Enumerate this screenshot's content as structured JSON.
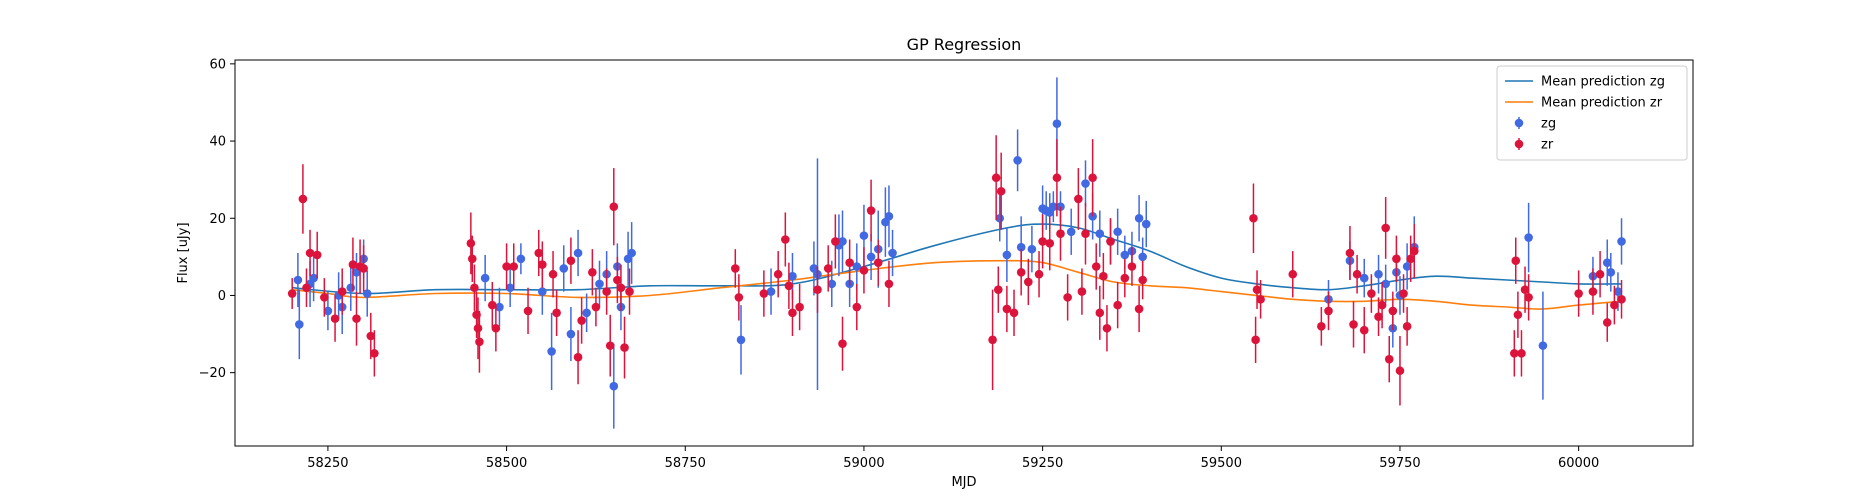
{
  "chart_data": {
    "type": "scatter",
    "title": "GP Regression",
    "xlabel": "MJD",
    "ylabel": "Flux [uJy]",
    "xlim": [
      58120,
      60160
    ],
    "ylim": [
      -39,
      61
    ],
    "xticks": [
      58250,
      58500,
      58750,
      59000,
      59250,
      59500,
      59750,
      60000
    ],
    "yticks": [
      -20,
      0,
      20,
      40,
      60
    ],
    "xtick_labels": [
      "58250",
      "58500",
      "58750",
      "59000",
      "59250",
      "59500",
      "59750",
      "60000"
    ],
    "ytick_labels": [
      "−20",
      "0",
      "20",
      "40",
      "60"
    ],
    "legend_position": "top-right",
    "series": [
      {
        "name": "Mean prediction zg",
        "kind": "line",
        "color": "#1f77b4",
        "x": [
          58200,
          58300,
          58400,
          58500,
          58600,
          58700,
          58800,
          58900,
          59000,
          59100,
          59200,
          59250,
          59300,
          59350,
          59400,
          59450,
          59500,
          59550,
          59600,
          59650,
          59700,
          59750,
          59800,
          59850,
          59900,
          59950,
          60000,
          60060
        ],
        "y": [
          2,
          0.5,
          1.5,
          1.5,
          1.5,
          2.5,
          2.5,
          3,
          7.5,
          13,
          17.5,
          18.5,
          17.5,
          14.5,
          11.5,
          7.5,
          4.5,
          3,
          2,
          1.5,
          2.5,
          4,
          5,
          4.5,
          4,
          3.5,
          3,
          3
        ]
      },
      {
        "name": "Mean prediction zr",
        "kind": "line",
        "color": "#ff7f0e",
        "x": [
          58200,
          58250,
          58300,
          58400,
          58500,
          58600,
          58700,
          58800,
          58900,
          59000,
          59100,
          59200,
          59250,
          59300,
          59350,
          59400,
          59450,
          59500,
          59550,
          59600,
          59650,
          59700,
          59750,
          59800,
          59850,
          59900,
          59950,
          60000,
          60060
        ],
        "y": [
          1.5,
          0.5,
          -0.5,
          0.5,
          0.5,
          -0.5,
          0,
          2,
          4,
          6.5,
          8.5,
          9,
          8.5,
          6,
          3.5,
          2.5,
          2,
          1,
          0,
          -1,
          -1.5,
          -1.5,
          -1,
          -1.5,
          -2.5,
          -3,
          -3.5,
          -2.5,
          -1.5
        ]
      },
      {
        "name": "zg",
        "kind": "errorbar",
        "color": "#4169e1",
        "points": [
          [
            58208,
            4,
            7
          ],
          [
            58210,
            -7.5,
            9
          ],
          [
            58225,
            3,
            6
          ],
          [
            58230,
            4.5,
            6
          ],
          [
            58250,
            -4,
            5
          ],
          [
            58265,
            0,
            6
          ],
          [
            58270,
            -3,
            7
          ],
          [
            58282,
            2,
            6
          ],
          [
            58290,
            6,
            5
          ],
          [
            58300,
            9.5,
            5
          ],
          [
            58305,
            0.5,
            6
          ],
          [
            58470,
            4.5,
            6
          ],
          [
            58490,
            -3,
            5
          ],
          [
            58505,
            2,
            5
          ],
          [
            58520,
            9.5,
            4
          ],
          [
            58550,
            1,
            6
          ],
          [
            58563,
            -14.5,
            10
          ],
          [
            58580,
            7,
            6
          ],
          [
            58590,
            -10,
            7
          ],
          [
            58600,
            11,
            6
          ],
          [
            58612,
            -4.5,
            5
          ],
          [
            58630,
            3,
            6
          ],
          [
            58640,
            5.5,
            6
          ],
          [
            58650,
            -23.5,
            11
          ],
          [
            58655,
            7.5,
            6
          ],
          [
            58660,
            -3,
            6
          ],
          [
            58670,
            9.5,
            7
          ],
          [
            58675,
            11,
            8
          ],
          [
            58828,
            -11.5,
            9
          ],
          [
            58870,
            1,
            6
          ],
          [
            58900,
            5,
            6
          ],
          [
            58930,
            7,
            7
          ],
          [
            58935,
            5.5,
            30
          ],
          [
            58955,
            3,
            6
          ],
          [
            58965,
            13,
            8
          ],
          [
            58970,
            14,
            8
          ],
          [
            58980,
            3,
            6
          ],
          [
            58990,
            7.5,
            6
          ],
          [
            59000,
            15.5,
            8
          ],
          [
            59010,
            10,
            6
          ],
          [
            59020,
            12,
            10
          ],
          [
            59030,
            19,
            9
          ],
          [
            59035,
            20.5,
            8
          ],
          [
            59040,
            11,
            6
          ],
          [
            59190,
            20,
            6
          ],
          [
            59200,
            10.5,
            7
          ],
          [
            59215,
            35,
            8
          ],
          [
            59220,
            12.5,
            8
          ],
          [
            59235,
            12,
            6
          ],
          [
            59250,
            22.5,
            6
          ],
          [
            59255,
            22,
            5
          ],
          [
            59260,
            21.5,
            5
          ],
          [
            59265,
            23,
            4
          ],
          [
            59270,
            44.5,
            12
          ],
          [
            59275,
            23,
            4
          ],
          [
            59290,
            16.5,
            6
          ],
          [
            59310,
            29,
            6
          ],
          [
            59320,
            20.5,
            6
          ],
          [
            59330,
            16,
            6
          ],
          [
            59345,
            14,
            6
          ],
          [
            59355,
            16.5,
            6
          ],
          [
            59365,
            10.5,
            5
          ],
          [
            59375,
            11.5,
            5
          ],
          [
            59385,
            20,
            6
          ],
          [
            59390,
            10,
            5
          ],
          [
            59395,
            18.5,
            6
          ],
          [
            59650,
            -1,
            5
          ],
          [
            59680,
            9,
            5
          ],
          [
            59700,
            4.5,
            5
          ],
          [
            59720,
            5.5,
            5
          ],
          [
            59730,
            3,
            5
          ],
          [
            59740,
            -8.5,
            5
          ],
          [
            59745,
            6,
            5
          ],
          [
            59750,
            0,
            5
          ],
          [
            59760,
            7.5,
            6
          ],
          [
            59770,
            12.5,
            8
          ],
          [
            59930,
            15,
            9
          ],
          [
            59950,
            -13,
            14
          ],
          [
            60020,
            5,
            5
          ],
          [
            60040,
            8.5,
            6
          ],
          [
            60045,
            6,
            5
          ],
          [
            60055,
            1,
            5
          ],
          [
            60060,
            14,
            6
          ]
        ]
      },
      {
        "name": "zr",
        "kind": "errorbar",
        "color": "#dc143c",
        "points": [
          [
            58200,
            0.5,
            4
          ],
          [
            58215,
            25,
            9
          ],
          [
            58220,
            2,
            5
          ],
          [
            58225,
            11,
            6
          ],
          [
            58235,
            10.5,
            6
          ],
          [
            58245,
            -0.5,
            5
          ],
          [
            58260,
            -6,
            6
          ],
          [
            58270,
            1,
            6
          ],
          [
            58285,
            8,
            7
          ],
          [
            58290,
            -6,
            7
          ],
          [
            58295,
            7.5,
            7
          ],
          [
            58300,
            7,
            6
          ],
          [
            58310,
            -10.5,
            6
          ],
          [
            58315,
            -15,
            6
          ],
          [
            58450,
            13.5,
            8
          ],
          [
            58452,
            9.5,
            6
          ],
          [
            58455,
            2,
            6
          ],
          [
            58458,
            -5,
            6
          ],
          [
            58460,
            -8.5,
            8
          ],
          [
            58462,
            -12,
            8
          ],
          [
            58480,
            -2.5,
            6
          ],
          [
            58485,
            -8.5,
            6
          ],
          [
            58500,
            7.5,
            6
          ],
          [
            58510,
            7.5,
            6
          ],
          [
            58530,
            -4,
            6
          ],
          [
            58545,
            11,
            6
          ],
          [
            58550,
            8,
            6
          ],
          [
            58565,
            5.5,
            6
          ],
          [
            58570,
            -4.5,
            6
          ],
          [
            58590,
            9,
            6
          ],
          [
            58600,
            -16,
            7
          ],
          [
            58605,
            -6.5,
            6
          ],
          [
            58620,
            6,
            6
          ],
          [
            58625,
            -3,
            5
          ],
          [
            58640,
            1,
            6
          ],
          [
            58645,
            -13,
            8
          ],
          [
            58650,
            23,
            10
          ],
          [
            58655,
            4,
            6
          ],
          [
            58660,
            2,
            6
          ],
          [
            58665,
            -13.5,
            8
          ],
          [
            58672,
            1,
            6
          ],
          [
            58820,
            7,
            5
          ],
          [
            58825,
            -0.5,
            6
          ],
          [
            58860,
            0.5,
            6
          ],
          [
            58880,
            5.5,
            6
          ],
          [
            58890,
            14.5,
            7
          ],
          [
            58895,
            2.5,
            6
          ],
          [
            58900,
            -4.5,
            6
          ],
          [
            58910,
            -3,
            6
          ],
          [
            58935,
            1.5,
            6
          ],
          [
            58950,
            7,
            6
          ],
          [
            58960,
            14,
            7
          ],
          [
            58970,
            -12.5,
            7
          ],
          [
            58980,
            8.5,
            6
          ],
          [
            58990,
            -3,
            6
          ],
          [
            59000,
            6.5,
            6
          ],
          [
            59010,
            22,
            8
          ],
          [
            59020,
            8.5,
            6
          ],
          [
            59035,
            3,
            6
          ],
          [
            59180,
            -11.5,
            13
          ],
          [
            59185,
            30.5,
            11
          ],
          [
            59188,
            1.5,
            6
          ],
          [
            59192,
            27,
            10
          ],
          [
            59200,
            -3.5,
            6
          ],
          [
            59210,
            -4.5,
            6
          ],
          [
            59220,
            6,
            6
          ],
          [
            59230,
            3.5,
            6
          ],
          [
            59245,
            5.5,
            6
          ],
          [
            59250,
            14,
            7
          ],
          [
            59260,
            13.5,
            7
          ],
          [
            59270,
            30.5,
            10
          ],
          [
            59275,
            16,
            7
          ],
          [
            59285,
            -0.5,
            6
          ],
          [
            59300,
            25,
            8
          ],
          [
            59305,
            1,
            6
          ],
          [
            59310,
            16,
            8
          ],
          [
            59320,
            30.5,
            10
          ],
          [
            59325,
            7.5,
            6
          ],
          [
            59330,
            -4.5,
            7
          ],
          [
            59335,
            5,
            6
          ],
          [
            59340,
            -8.5,
            6
          ],
          [
            59345,
            14,
            6
          ],
          [
            59355,
            -2.5,
            6
          ],
          [
            59365,
            4.5,
            5
          ],
          [
            59375,
            7.5,
            5
          ],
          [
            59385,
            -3.5,
            6
          ],
          [
            59390,
            4,
            5
          ],
          [
            59545,
            20,
            9
          ],
          [
            59548,
            -11.5,
            6
          ],
          [
            59550,
            1.5,
            5
          ],
          [
            59555,
            -1,
            5
          ],
          [
            59600,
            5.5,
            6
          ],
          [
            59640,
            -8,
            5
          ],
          [
            59650,
            -4,
            5
          ],
          [
            59680,
            11,
            7
          ],
          [
            59685,
            -7.5,
            6
          ],
          [
            59690,
            5.5,
            5
          ],
          [
            59700,
            -9,
            6
          ],
          [
            59710,
            0.5,
            5
          ],
          [
            59720,
            -5.5,
            5
          ],
          [
            59725,
            -2.5,
            6
          ],
          [
            59730,
            17.5,
            8
          ],
          [
            59735,
            -16.5,
            6
          ],
          [
            59740,
            -4,
            5
          ],
          [
            59745,
            9.5,
            6
          ],
          [
            59750,
            -19.5,
            9
          ],
          [
            59755,
            0.5,
            5
          ],
          [
            59760,
            -8,
            5
          ],
          [
            59765,
            9.5,
            6
          ],
          [
            59770,
            11.5,
            7
          ],
          [
            59910,
            -15,
            6
          ],
          [
            59912,
            9,
            6
          ],
          [
            59915,
            -5,
            6
          ],
          [
            59920,
            -15,
            6
          ],
          [
            59925,
            1.5,
            6
          ],
          [
            59930,
            -0.5,
            6
          ],
          [
            60000,
            0.5,
            6
          ],
          [
            60020,
            1,
            6
          ],
          [
            60030,
            5.5,
            6
          ],
          [
            60040,
            -7,
            5
          ],
          [
            60050,
            -2.5,
            5
          ],
          [
            60060,
            -1,
            5
          ]
        ]
      }
    ]
  }
}
